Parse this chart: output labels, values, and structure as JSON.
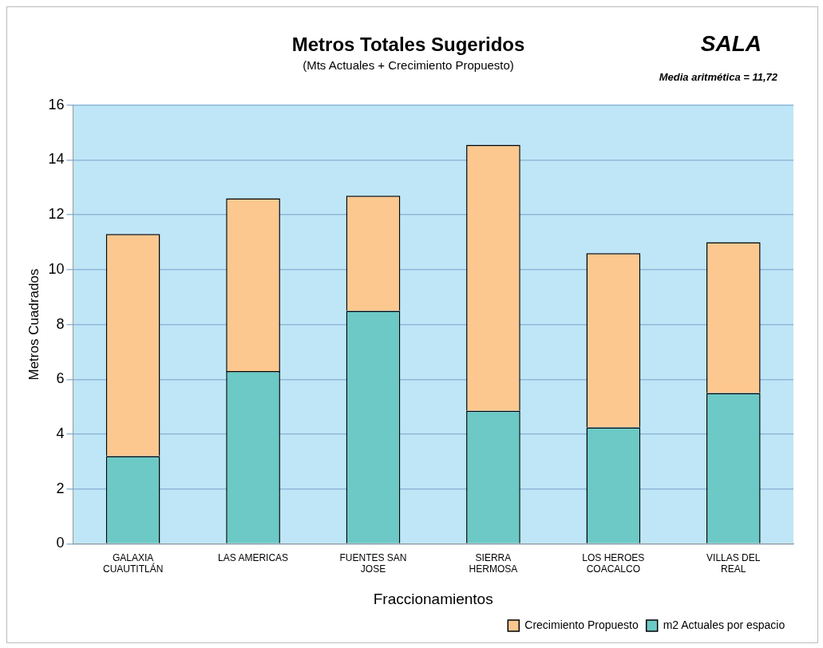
{
  "chart_data": {
    "type": "bar",
    "title": "Metros Totales Sugeridos",
    "subtitle": "(Mts Actuales + Crecimiento Propuesto)",
    "annotations": [
      "SALA",
      "Media aritmética = 11,72"
    ],
    "xlabel": "Fraccionamientos",
    "ylabel": "Metros Cuadrados",
    "categories": [
      "GALAXIA CUAUTITLÁN",
      "LAS AMERICAS",
      "FUENTES SAN JOSE",
      "SIERRA HERMOSA",
      "LOS HEROES COACALCO",
      "VILLAS DEL REAL"
    ],
    "stacked": true,
    "series": [
      {
        "name": "m2 Actuales por espacio",
        "color": "#6cc9c6",
        "values": [
          3.2,
          6.3,
          8.5,
          4.85,
          4.25,
          5.5
        ]
      },
      {
        "name": "Crecimiento Propuesto",
        "color": "#fcc890",
        "values": [
          8.1,
          6.3,
          4.2,
          9.7,
          6.35,
          5.5
        ]
      }
    ],
    "ylim": [
      0,
      16
    ],
    "yticks": [
      0,
      2,
      4,
      6,
      8,
      10,
      12,
      14,
      16
    ],
    "grid": "y",
    "legend": "bottom right"
  }
}
